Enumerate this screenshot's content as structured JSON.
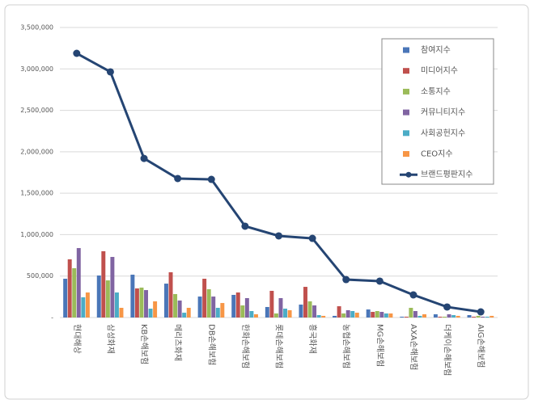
{
  "chart_data": {
    "type": "bar",
    "categories": [
      "현대해상",
      "삼성화재",
      "KB손해보험",
      "메리츠화재",
      "DB손해보험",
      "한화손해보험",
      "롯데손해보험",
      "흥국화재",
      "농협손해보험",
      "MG손해보험",
      "AXA손해보험",
      "더케이손해보험",
      "AIG손해보험"
    ],
    "series": [
      {
        "name": "참여지수",
        "color": "#4a76b8",
        "values": [
          468000,
          507000,
          517000,
          409000,
          253000,
          273000,
          127000,
          156000,
          20000,
          97000,
          10000,
          39000,
          29000
        ]
      },
      {
        "name": "미디어지수",
        "color": "#c0504d",
        "values": [
          702000,
          800000,
          351000,
          546000,
          468000,
          302000,
          322000,
          370000,
          136000,
          68000,
          10000,
          10000,
          10000
        ]
      },
      {
        "name": "소통지수",
        "color": "#9bbb59",
        "values": [
          595000,
          448000,
          361000,
          283000,
          341000,
          146000,
          49000,
          195000,
          49000,
          78000,
          117000,
          10000,
          20000
        ]
      },
      {
        "name": "커뮤니티지수",
        "color": "#8064a2",
        "values": [
          838000,
          731000,
          331000,
          205000,
          253000,
          234000,
          234000,
          146000,
          88000,
          68000,
          78000,
          39000,
          10000
        ]
      },
      {
        "name": "사회공헌지수",
        "color": "#4bacc6",
        "values": [
          244000,
          302000,
          107000,
          58000,
          117000,
          78000,
          107000,
          29000,
          78000,
          49000,
          20000,
          29000,
          10000
        ]
      },
      {
        "name": "CEO지수",
        "color": "#f79646",
        "values": [
          302000,
          117000,
          195000,
          117000,
          175000,
          39000,
          88000,
          20000,
          58000,
          49000,
          39000,
          20000,
          20000
        ]
      },
      {
        "name": "브랜드평판지수",
        "color": "#254573",
        "type": "line",
        "values": [
          3188000,
          2964000,
          1920000,
          1677000,
          1667000,
          1102000,
          985000,
          955000,
          458000,
          439000,
          273000,
          127000,
          68000
        ]
      }
    ],
    "ylim": [
      0,
      3500000
    ],
    "yticks": [
      {
        "value": 0,
        "label": "-"
      },
      {
        "value": 500000,
        "label": "500,000"
      },
      {
        "value": 1000000,
        "label": "1,000,000"
      },
      {
        "value": 1500000,
        "label": "1,500,000"
      },
      {
        "value": 2000000,
        "label": "2,000,000"
      },
      {
        "value": 2500000,
        "label": "2,500,000"
      },
      {
        "value": 3000000,
        "label": "3,000,000"
      },
      {
        "value": 3500000,
        "label": "3,500,000"
      }
    ],
    "grid": true,
    "legend": "top-right"
  }
}
